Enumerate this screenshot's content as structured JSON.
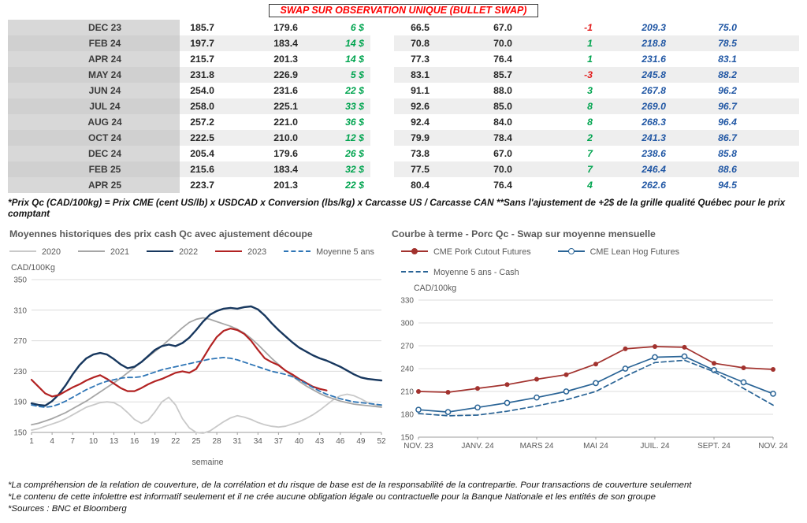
{
  "page": {
    "title": "SWAP SUR OBSERVATION UNIQUE (BULLET SWAP)"
  },
  "table": {
    "rows": [
      [
        "DEC 23",
        "185.7",
        "179.6",
        "6 $",
        "66.5",
        "67.0",
        "-1",
        "209.3",
        "75.0"
      ],
      [
        "FEB 24",
        "197.7",
        "183.4",
        "14 $",
        "70.8",
        "70.0",
        "1",
        "218.8",
        "78.5"
      ],
      [
        "APR 24",
        "215.7",
        "201.3",
        "14 $",
        "77.3",
        "76.4",
        "1",
        "231.6",
        "83.1"
      ],
      [
        "MAY 24",
        "231.8",
        "226.9",
        "5 $",
        "83.1",
        "85.7",
        "-3",
        "245.8",
        "88.2"
      ],
      [
        "JUN 24",
        "254.0",
        "231.6",
        "22 $",
        "91.1",
        "88.0",
        "3",
        "267.8",
        "96.2"
      ],
      [
        "JUL 24",
        "258.0",
        "225.1",
        "33 $",
        "92.6",
        "85.0",
        "8",
        "269.0",
        "96.7"
      ],
      [
        "AUG 24",
        "257.2",
        "221.0",
        "36 $",
        "92.4",
        "84.0",
        "8",
        "268.3",
        "96.4"
      ],
      [
        "OCT 24",
        "222.5",
        "210.0",
        "12 $",
        "79.9",
        "78.4",
        "2",
        "241.3",
        "86.7"
      ],
      [
        "DEC 24",
        "205.4",
        "179.6",
        "26 $",
        "73.8",
        "67.0",
        "7",
        "238.6",
        "85.8"
      ],
      [
        "FEB 25",
        "215.6",
        "183.4",
        "32 $",
        "77.5",
        "70.0",
        "7",
        "246.4",
        "88.6"
      ],
      [
        "APR 25",
        "223.7",
        "201.3",
        "22 $",
        "80.4",
        "76.4",
        "4",
        "262.6",
        "94.5"
      ]
    ]
  },
  "table_note": "*Prix Qc (CAD/100kg) = Prix CME (cent US/lb) x USDCAD x Conversion (lbs/kg) x Carcasse US / Carcasse CAN **Sans l'ajustement de +2$ de la grille qualité Québec pour le prix comptant",
  "chart_data": [
    {
      "type": "line",
      "title": "Moyennes historiques des prix cash Qc avec ajustement découpe",
      "ylabel": "CAD/100Kg",
      "xlabel": "semaine",
      "ylim": [
        150,
        350
      ],
      "yticks": [
        150,
        190,
        230,
        270,
        310,
        350
      ],
      "xticks": [
        1,
        4,
        7,
        10,
        13,
        16,
        19,
        22,
        25,
        28,
        31,
        34,
        37,
        40,
        43,
        46,
        49,
        52
      ],
      "x_range": [
        1,
        52
      ],
      "grid": true,
      "legend_position": "top",
      "series": [
        {
          "name": "2020",
          "color": "#c9c9c9",
          "width": 1.8,
          "values": [
            153,
            155,
            158,
            161,
            164,
            168,
            173,
            178,
            183,
            186,
            189,
            190,
            189,
            184,
            176,
            167,
            162,
            166,
            177,
            190,
            196,
            186,
            168,
            156,
            150,
            149,
            152,
            158,
            164,
            169,
            172,
            170,
            167,
            163,
            160,
            158,
            157,
            158,
            161,
            164,
            168,
            173,
            179,
            186,
            193,
            198,
            200,
            198,
            194,
            189,
            186,
            184
          ]
        },
        {
          "name": "2021",
          "color": "#a6a6a6",
          "width": 1.8,
          "values": [
            160,
            162,
            165,
            168,
            172,
            176,
            181,
            186,
            191,
            197,
            203,
            209,
            215,
            221,
            228,
            235,
            242,
            249,
            256,
            263,
            271,
            279,
            287,
            294,
            298,
            300,
            298,
            295,
            292,
            289,
            285,
            280,
            273,
            265,
            256,
            247,
            239,
            231,
            224,
            217,
            211,
            206,
            201,
            197,
            194,
            191,
            189,
            187,
            186,
            185,
            184,
            183
          ]
        },
        {
          "name": "2022",
          "color": "#17375e",
          "width": 2.4,
          "values": [
            188,
            186,
            185,
            191,
            200,
            212,
            226,
            238,
            247,
            252,
            254,
            252,
            246,
            239,
            234,
            236,
            242,
            250,
            258,
            263,
            265,
            263,
            267,
            274,
            284,
            295,
            304,
            309,
            312,
            313,
            312,
            314,
            315,
            311,
            303,
            293,
            284,
            276,
            268,
            261,
            256,
            251,
            247,
            244,
            240,
            236,
            231,
            226,
            222,
            220,
            219,
            218
          ]
        },
        {
          "name": "2023",
          "color": "#b22222",
          "width": 2.2,
          "values": [
            219,
            210,
            201,
            197,
            199,
            204,
            209,
            213,
            218,
            222,
            225,
            220,
            214,
            208,
            204,
            204,
            208,
            213,
            217,
            220,
            224,
            228,
            230,
            228,
            233,
            247,
            262,
            275,
            283,
            286,
            284,
            279,
            270,
            258,
            247,
            242,
            238,
            231,
            226,
            220,
            215,
            210,
            207,
            205,
            null,
            null,
            null,
            null,
            null,
            null,
            null,
            null
          ]
        },
        {
          "name": "Moyenne 5 ans",
          "color": "#2e75b6",
          "dash": "dashed",
          "width": 1.8,
          "values": [
            186,
            184,
            183,
            184,
            187,
            191,
            196,
            201,
            206,
            210,
            214,
            217,
            219,
            221,
            222,
            222,
            223,
            226,
            229,
            232,
            234,
            236,
            238,
            240,
            242,
            244,
            246,
            247,
            248,
            247,
            245,
            242,
            239,
            236,
            233,
            230,
            228,
            226,
            223,
            219,
            214,
            209,
            204,
            200,
            197,
            194,
            192,
            190,
            189,
            188,
            187,
            186
          ]
        }
      ]
    },
    {
      "type": "line",
      "title": "Courbe à terme - Porc Qc - Swap sur moyenne mensuelle",
      "ylabel": "CAD/100kg",
      "ylim": [
        150,
        330
      ],
      "yticks": [
        150,
        180,
        210,
        240,
        270,
        300,
        330
      ],
      "xtick_labels": [
        "NOV. 23",
        "JANV. 24",
        "MARS 24",
        "MAI 24",
        "JUIL. 24",
        "SEPT. 24",
        "NOV. 24"
      ],
      "grid": true,
      "legend_position": "top",
      "legend_break_after": 1,
      "series": [
        {
          "name": "CME Pork Cutout Futures",
          "color": "#a2322e",
          "marker": "filled",
          "width": 1.7,
          "values": [
            210,
            209,
            214,
            219,
            226,
            232,
            246,
            266,
            269,
            268,
            247,
            241,
            239
          ]
        },
        {
          "name": "CME Lean Hog Futures",
          "color": "#2a6496",
          "marker": "open",
          "width": 1.7,
          "values": [
            186,
            183,
            189,
            195,
            202,
            210,
            221,
            240,
            255,
            256,
            238,
            222,
            207
          ]
        },
        {
          "name": "Moyenne 5 ans - Cash",
          "color": "#2a6496",
          "dash": "dashed",
          "width": 1.7,
          "values": [
            181,
            178,
            179,
            184,
            191,
            199,
            210,
            230,
            248,
            251,
            236,
            214,
            192
          ]
        }
      ]
    }
  ],
  "footnotes": [
    "*La compréhension de la relation de couverture, de la corrélation et du risque de base est de la responsabilité de la contrepartie. Pour transactions de couverture seulement",
    "*Le contenu de cette infolettre est informatif seulement et il ne crée aucune obligation légale ou contractuelle pour la Banque Nationale et les entités de son groupe",
    "*Sources : BNC et Bloomberg"
  ]
}
